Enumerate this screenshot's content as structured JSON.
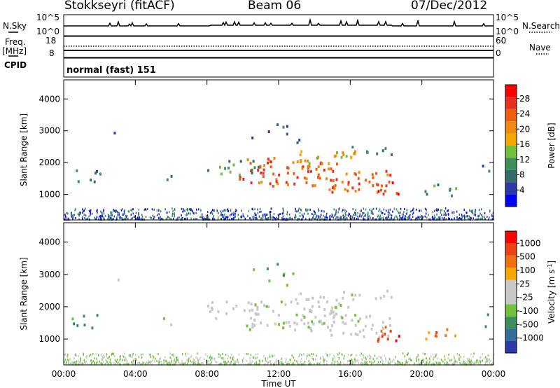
{
  "header": {
    "station": "Stokkseyri (fitACF)",
    "beam": "Beam 06",
    "date": "07/Dec/2012"
  },
  "side_labels": {
    "nsky": "N.Sky",
    "freq": "Freq.",
    "freq_unit": "[MHz]",
    "cpid": "CPID",
    "nsearch": "N.Search",
    "nave": "Nave",
    "nsky_top": "10^5",
    "nsky_bottom": "10^0",
    "nsearch_top": "10^5",
    "nsearch_bottom": "10^0",
    "freq_top": "18",
    "freq_bottom": "8",
    "nave_top": "60",
    "nave_bottom": "0"
  },
  "cpid_text": "normal (fast) 151",
  "colors": {
    "power_scale": [
      "#0000ff",
      "#2b3aa8",
      "#336d6b",
      "#3c8f5a",
      "#70c03b",
      "#f5a800",
      "#f08a10",
      "#ee6010",
      "#e83020",
      "#ff0000"
    ],
    "velocity_scale": [
      "#2b3aa8",
      "#336d9a",
      "#3c8f5a",
      "#6fc23a",
      "#c8c8c8",
      "#c8c8c8",
      "#f5a800",
      "#f07010",
      "#ee4010",
      "#ff0000"
    ]
  },
  "chart_data": [
    {
      "type": "heatmap",
      "title": "Power",
      "xlabel": "Time UT",
      "ylabel": "Slant Range [km]",
      "x_ticks": [
        "00:00",
        "04:00",
        "08:00",
        "12:00",
        "16:00",
        "20:00",
        "00:00"
      ],
      "y_ticks": [
        "1000",
        "2000",
        "3000",
        "4000"
      ],
      "xlim": [
        0,
        24
      ],
      "ylim": [
        200,
        4600
      ],
      "colorbar": {
        "label": "Power [dB]",
        "ticks": [
          "4",
          "8",
          "12",
          "16",
          "20",
          "24",
          "28"
        ],
        "range": [
          0,
          30
        ]
      }
    },
    {
      "type": "heatmap",
      "title": "Velocity",
      "xlabel": "Time UT",
      "ylabel": "Slant Range [km]",
      "x_ticks": [
        "00:00",
        "04:00",
        "08:00",
        "12:00",
        "16:00",
        "20:00",
        "00:00"
      ],
      "y_ticks": [
        "1000",
        "2000",
        "3000",
        "4000"
      ],
      "xlim": [
        0,
        24
      ],
      "ylim": [
        200,
        4600
      ],
      "colorbar": {
        "label": "Velocity [m s",
        "label_exp": "-1",
        "label_end": "]",
        "ticks": [
          "1000",
          "500",
          "100",
          "25",
          "-25",
          "-100",
          "-500",
          "-1000"
        ]
      }
    }
  ]
}
